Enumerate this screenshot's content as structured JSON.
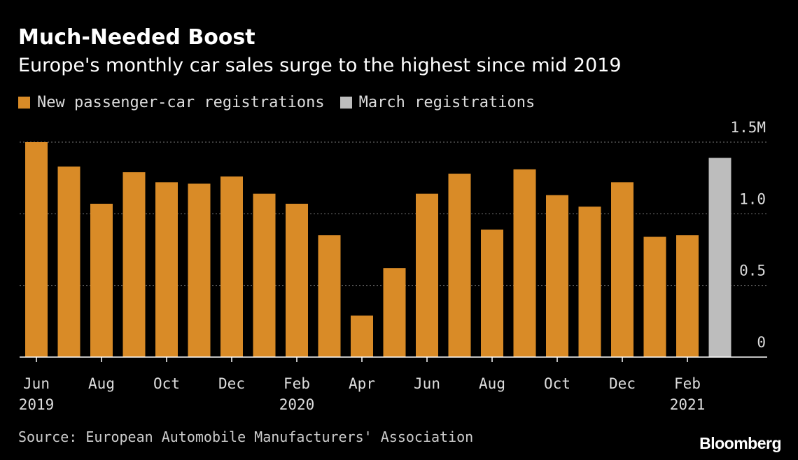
{
  "title": "Much-Needed Boost",
  "subtitle": "Europe's monthly car sales surge to the highest since mid 2019",
  "legend": [
    {
      "label": "New passenger-car registrations",
      "color": "#d98b27"
    },
    {
      "label": "March registrations",
      "color": "#bdbdbd"
    }
  ],
  "source": "Source: European Automobile Manufacturers' Association",
  "brand": "Bloomberg",
  "chart_data": {
    "type": "bar",
    "categories": [
      "Jun 2019",
      "Jul 2019",
      "Aug 2019",
      "Sep 2019",
      "Oct 2019",
      "Nov 2019",
      "Dec 2019",
      "Jan 2020",
      "Feb 2020",
      "Mar 2020",
      "Apr 2020",
      "May 2020",
      "Jun 2020",
      "Jul 2020",
      "Aug 2020",
      "Sep 2020",
      "Oct 2020",
      "Nov 2020",
      "Dec 2020",
      "Jan 2021",
      "Feb 2021",
      "Mar 2021"
    ],
    "series": [
      {
        "name": "New passenger-car registrations",
        "color": "#d98b27",
        "values": [
          1.5,
          1.33,
          1.07,
          1.29,
          1.22,
          1.21,
          1.26,
          1.14,
          1.07,
          0.85,
          0.29,
          0.62,
          1.14,
          1.28,
          0.89,
          1.31,
          1.13,
          1.05,
          1.22,
          0.84,
          0.85,
          null
        ]
      },
      {
        "name": "March registrations",
        "color": "#bdbdbd",
        "values": [
          null,
          null,
          null,
          null,
          null,
          null,
          null,
          null,
          null,
          null,
          null,
          null,
          null,
          null,
          null,
          null,
          null,
          null,
          null,
          null,
          null,
          1.39
        ]
      }
    ],
    "yticks": [
      "0",
      "0.5",
      "1.0",
      "1.5M"
    ],
    "ytick_values": [
      0,
      0.5,
      1.0,
      1.5
    ],
    "ylim": [
      0,
      1.5
    ],
    "xtick_labels": [
      {
        "index": 0,
        "month": "Jun",
        "year": "2019"
      },
      {
        "index": 2,
        "month": "Aug",
        "year": ""
      },
      {
        "index": 4,
        "month": "Oct",
        "year": ""
      },
      {
        "index": 6,
        "month": "Dec",
        "year": ""
      },
      {
        "index": 8,
        "month": "Feb",
        "year": "2020"
      },
      {
        "index": 10,
        "month": "Apr",
        "year": ""
      },
      {
        "index": 12,
        "month": "Jun",
        "year": ""
      },
      {
        "index": 14,
        "month": "Aug",
        "year": ""
      },
      {
        "index": 16,
        "month": "Oct",
        "year": ""
      },
      {
        "index": 18,
        "month": "Dec",
        "year": ""
      },
      {
        "index": 20,
        "month": "Feb",
        "year": "2021"
      }
    ],
    "grid": true,
    "legend_position": "top-left"
  }
}
